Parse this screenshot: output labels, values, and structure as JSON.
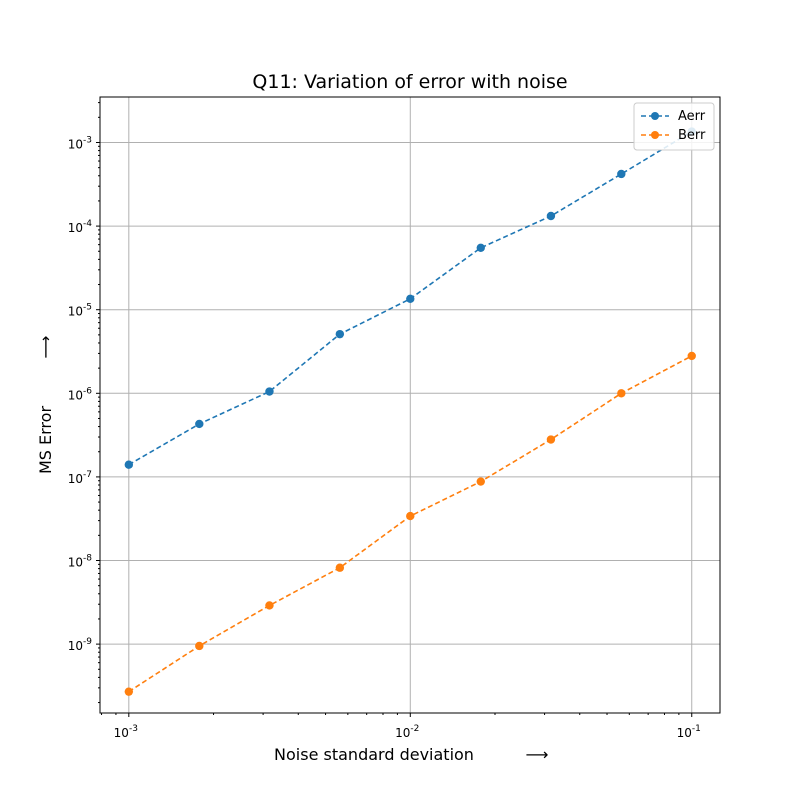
{
  "chart_data": {
    "type": "line",
    "title": "Q11: Variation of error with noise",
    "xlabel": "Noise standard deviation",
    "ylabel": "MS Error",
    "xlabel_arrow": "⟶",
    "ylabel_arrow": "⟶",
    "xscale": "log",
    "yscale": "log",
    "xlim": [
      0.00079,
      0.126
    ],
    "ylim": [
      1.5e-10,
      0.0035
    ],
    "grid": true,
    "legend": "top-right",
    "x_ticks": [
      {
        "value": 0.001,
        "base": "10",
        "exp": "-3"
      },
      {
        "value": 0.01,
        "base": "10",
        "exp": "-2"
      },
      {
        "value": 0.1,
        "base": "10",
        "exp": "-1"
      }
    ],
    "y_ticks": [
      {
        "value": 1e-09,
        "base": "10",
        "exp": "-9"
      },
      {
        "value": 1e-08,
        "base": "10",
        "exp": "-8"
      },
      {
        "value": 1e-07,
        "base": "10",
        "exp": "-7"
      },
      {
        "value": 1e-06,
        "base": "10",
        "exp": "-6"
      },
      {
        "value": 1e-05,
        "base": "10",
        "exp": "-5"
      },
      {
        "value": 0.0001,
        "base": "10",
        "exp": "-4"
      },
      {
        "value": 0.001,
        "base": "10",
        "exp": "-3"
      }
    ],
    "x": [
      0.001,
      0.00178,
      0.00316,
      0.00562,
      0.01,
      0.0178,
      0.0316,
      0.0562,
      0.1
    ],
    "series": [
      {
        "name": "Aerr",
        "color": "#1f77b4",
        "values": [
          1.4e-07,
          4.3e-07,
          1.05e-06,
          5.1e-06,
          1.35e-05,
          5.5e-05,
          0.000132,
          0.00042,
          0.00135
        ]
      },
      {
        "name": "Berr",
        "color": "#ff7f0e",
        "values": [
          2.7e-10,
          9.5e-10,
          2.9e-09,
          8.2e-09,
          3.4e-08,
          8.8e-08,
          2.8e-07,
          1e-06,
          2.8e-06
        ]
      }
    ]
  }
}
